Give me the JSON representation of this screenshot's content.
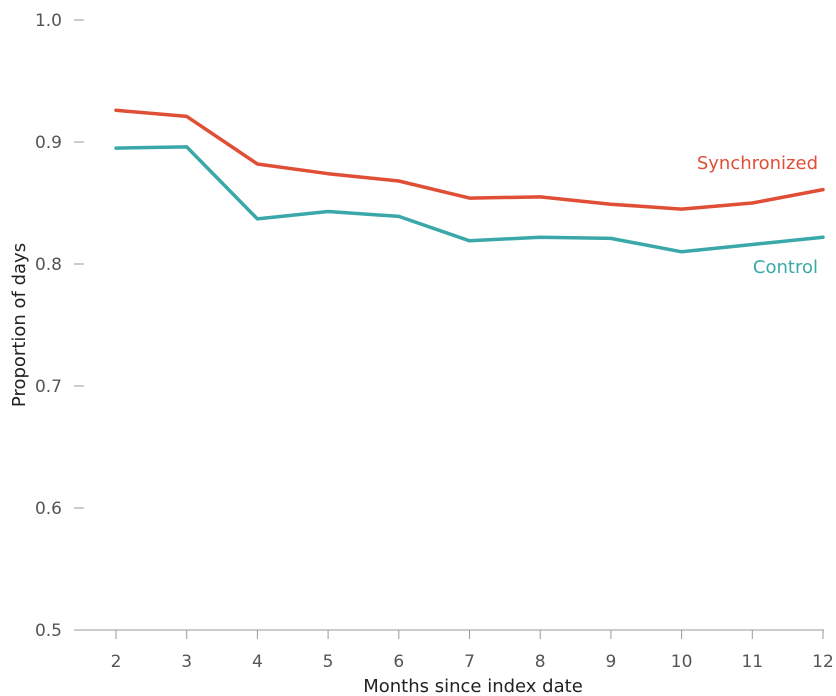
{
  "chart_data": {
    "type": "line",
    "title": "",
    "xlabel": "Months since index date",
    "ylabel": "Proportion of days",
    "x": [
      2,
      3,
      4,
      5,
      6,
      7,
      8,
      9,
      10,
      11,
      12
    ],
    "xlim": [
      2,
      12
    ],
    "ylim": [
      0.5,
      1.0
    ],
    "yticks": [
      "0.5",
      "0.6",
      "0.7",
      "0.8",
      "0.9",
      "1.0"
    ],
    "xticks": [
      "2",
      "3",
      "4",
      "5",
      "6",
      "7",
      "8",
      "9",
      "10",
      "11",
      "12"
    ],
    "grid": false,
    "legend": "inline labels at right end of lines",
    "series": [
      {
        "name": "Synchronized",
        "color": "#e04e36",
        "values": [
          0.926,
          0.921,
          0.882,
          0.874,
          0.868,
          0.854,
          0.855,
          0.849,
          0.845,
          0.85,
          0.861
        ]
      },
      {
        "name": "Control",
        "color": "#3aa8a8",
        "values": [
          0.895,
          0.896,
          0.837,
          0.843,
          0.839,
          0.819,
          0.822,
          0.821,
          0.81,
          0.816,
          0.822
        ]
      }
    ]
  }
}
